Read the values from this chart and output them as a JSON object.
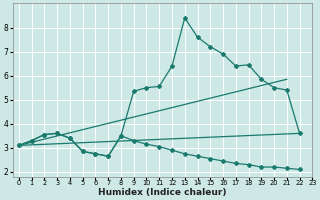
{
  "xlabel": "Humidex (Indice chaleur)",
  "xlim": [
    -0.5,
    23
  ],
  "ylim": [
    1.8,
    9.0
  ],
  "yticks": [
    2,
    3,
    4,
    5,
    6,
    7,
    8
  ],
  "xticks": [
    0,
    1,
    2,
    3,
    4,
    5,
    6,
    7,
    8,
    9,
    10,
    11,
    12,
    13,
    14,
    15,
    16,
    17,
    18,
    19,
    20,
    21,
    22,
    23
  ],
  "bg_color": "#cde8e5",
  "grid_color": "#ffffff",
  "line_color": "#1a7a6e",
  "series1_x": [
    0,
    1,
    2,
    3,
    4,
    5,
    6,
    7,
    8,
    9,
    10,
    11,
    12,
    13,
    14,
    15,
    16,
    17,
    18,
    19,
    20,
    21,
    22
  ],
  "series1_y": [
    3.1,
    3.3,
    3.55,
    3.6,
    3.4,
    2.85,
    2.75,
    2.65,
    3.5,
    5.35,
    5.5,
    5.55,
    6.4,
    8.4,
    7.6,
    7.2,
    6.9,
    6.4,
    6.45,
    5.85,
    5.5,
    5.4,
    3.6
  ],
  "series2_x": [
    0,
    21
  ],
  "series2_y": [
    3.1,
    5.85
  ],
  "series3_x": [
    0,
    22
  ],
  "series3_y": [
    3.1,
    3.6
  ],
  "series4_x": [
    0,
    1,
    2,
    3,
    4,
    5,
    6,
    7,
    8,
    9,
    10,
    11,
    12,
    13,
    14,
    15,
    16,
    17,
    18,
    19,
    20,
    21,
    22
  ],
  "series4_y": [
    3.1,
    3.3,
    3.55,
    3.6,
    3.4,
    2.85,
    2.75,
    2.65,
    3.5,
    3.3,
    3.15,
    3.05,
    2.9,
    2.75,
    2.65,
    2.55,
    2.45,
    2.35,
    2.3,
    2.2,
    2.2,
    2.15,
    2.1
  ]
}
